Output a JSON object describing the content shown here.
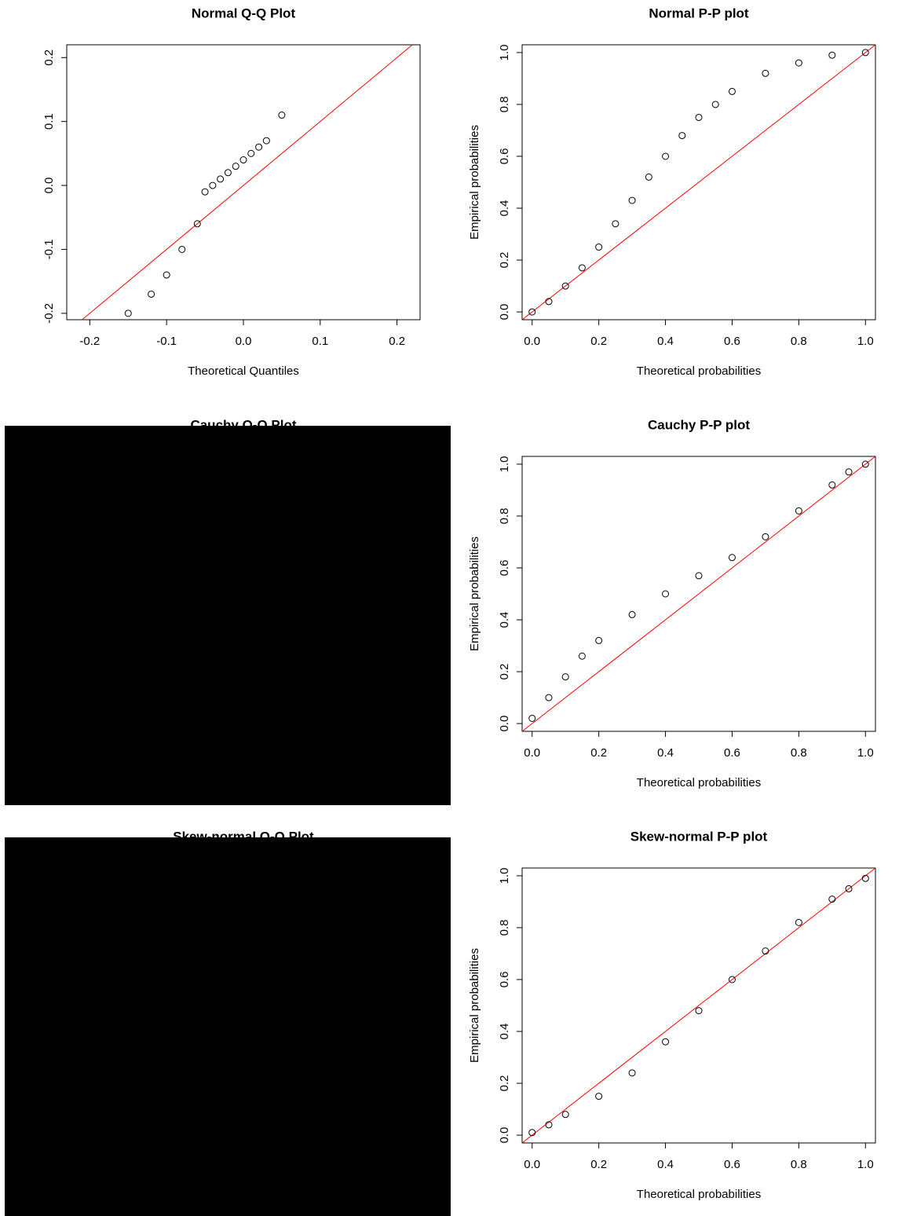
{
  "chart_data": [
    {
      "type": "scatter",
      "title": "Normal Q-Q Plot",
      "xlabel": "Theoretical Quantiles",
      "x": [
        -0.15,
        -0.12,
        -0.1,
        -0.08,
        -0.06,
        -0.05,
        -0.04,
        -0.03,
        -0.02,
        -0.01,
        0.0,
        0.01,
        0.02,
        0.03,
        0.05
      ],
      "y": [
        -0.2,
        -0.17,
        -0.14,
        -0.1,
        -0.06,
        -0.01,
        0.0,
        0.01,
        0.02,
        0.03,
        0.04,
        0.05,
        0.06,
        0.07,
        0.11
      ],
      "xlim": [
        -0.23,
        0.23
      ],
      "ylim": [
        -0.21,
        0.22
      ],
      "xticks": [
        -0.2,
        -0.1,
        {
          "value": 0,
          "label": "0.0"
        },
        0.1,
        0.2
      ],
      "yticks": [
        -0.2,
        -0.1,
        {
          "value": 0,
          "label": "0.0"
        },
        0.1,
        0.2
      ],
      "point_color": "#000000",
      "line_color": "#ff0000",
      "obscured": false
    },
    {
      "type": "scatter",
      "title": "Normal P-P plot",
      "xlabel": "Theoretical probabilities",
      "ylabel": "Empirical probabilities",
      "x": [
        0.0,
        0.05,
        0.1,
        0.15,
        0.2,
        0.25,
        0.3,
        0.35,
        0.4,
        0.45,
        0.5,
        0.55,
        0.6,
        0.7,
        0.8,
        0.9,
        1.0
      ],
      "y": [
        0.0,
        0.04,
        0.1,
        0.17,
        0.25,
        0.34,
        0.43,
        0.52,
        0.6,
        0.68,
        0.75,
        0.8,
        0.85,
        0.92,
        0.96,
        0.99,
        1.0
      ],
      "xlim": [
        -0.03,
        1.03
      ],
      "ylim": [
        -0.03,
        1.03
      ],
      "xticks": [
        {
          "value": 0,
          "label": "0.0"
        },
        0.2,
        0.4,
        0.6,
        0.8,
        {
          "value": 1,
          "label": "1.0"
        }
      ],
      "yticks": [
        {
          "value": 0,
          "label": "0.0"
        },
        0.2,
        0.4,
        0.6,
        0.8,
        {
          "value": 1,
          "label": "1.0"
        }
      ],
      "point_color": "#000000",
      "line_color": "#ff0000",
      "obscured": false
    },
    {
      "type": "scatter",
      "title": "Cauchy Q-Q Plot",
      "obscured": true
    },
    {
      "type": "scatter",
      "title": "Cauchy P-P plot",
      "xlabel": "Theoretical probabilities",
      "ylabel": "Empirical probabilities",
      "x": [
        0.0,
        0.05,
        0.1,
        0.15,
        0.2,
        0.3,
        0.4,
        0.5,
        0.6,
        0.7,
        0.8,
        0.9,
        0.95,
        1.0
      ],
      "y": [
        0.02,
        0.1,
        0.18,
        0.26,
        0.32,
        0.42,
        0.5,
        0.57,
        0.64,
        0.72,
        0.82,
        0.92,
        0.97,
        1.0
      ],
      "xlim": [
        -0.03,
        1.03
      ],
      "ylim": [
        -0.03,
        1.03
      ],
      "xticks": [
        {
          "value": 0,
          "label": "0.0"
        },
        0.2,
        0.4,
        0.6,
        0.8,
        {
          "value": 1,
          "label": "1.0"
        }
      ],
      "yticks": [
        {
          "value": 0,
          "label": "0.0"
        },
        0.2,
        0.4,
        0.6,
        0.8,
        {
          "value": 1,
          "label": "1.0"
        }
      ],
      "point_color": "#000000",
      "line_color": "#ff0000",
      "obscured": false
    },
    {
      "type": "scatter",
      "title": "Skew-normal Q-Q Plot",
      "obscured": true
    },
    {
      "type": "scatter",
      "title": "Skew-normal P-P plot",
      "xlabel": "Theoretical probabilities",
      "ylabel": "Empirical probabilities",
      "x": [
        0.0,
        0.05,
        0.1,
        0.2,
        0.3,
        0.4,
        0.5,
        0.6,
        0.7,
        0.8,
        0.9,
        0.95,
        1.0
      ],
      "y": [
        0.01,
        0.04,
        0.08,
        0.15,
        0.24,
        0.36,
        0.48,
        0.6,
        0.71,
        0.82,
        0.91,
        0.95,
        0.99
      ],
      "xlim": [
        -0.03,
        1.03
      ],
      "ylim": [
        -0.03,
        1.03
      ],
      "xticks": [
        {
          "value": 0,
          "label": "0.0"
        },
        0.2,
        0.4,
        0.6,
        0.8,
        {
          "value": 1,
          "label": "1.0"
        }
      ],
      "yticks": [
        {
          "value": 0,
          "label": "0.0"
        },
        0.2,
        0.4,
        0.6,
        0.8,
        {
          "value": 1,
          "label": "1.0"
        }
      ],
      "point_color": "#000000",
      "line_color": "#ff0000",
      "obscured": false
    }
  ]
}
